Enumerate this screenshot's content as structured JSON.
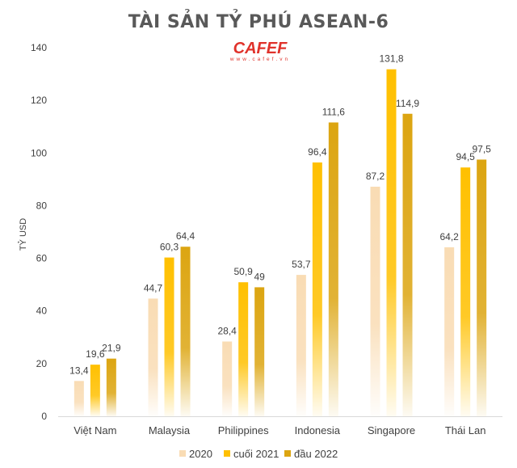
{
  "chart_data": {
    "type": "bar",
    "title": "TÀI SẢN TỶ PHÚ ASEAN-6",
    "xlabel": "",
    "ylabel": "TỶ USD",
    "ylim": [
      0,
      140
    ],
    "yticks": [
      0,
      20,
      40,
      60,
      80,
      100,
      120,
      140
    ],
    "grid": false,
    "legend": "bottom",
    "categories": [
      "Việt Nam",
      "Malaysia",
      "Philippines",
      "Indonesia",
      "Singapore",
      "Thái Lan"
    ],
    "series": [
      {
        "name": "2020",
        "color": "#f9dcb4",
        "values": [
          13.4,
          44.7,
          28.4,
          53.7,
          87.2,
          64.2
        ],
        "labels": [
          "13,4",
          "44,7",
          "28,4",
          "53,7",
          "87,2",
          "64,2"
        ]
      },
      {
        "name": "cuối 2021",
        "color": "#ffc000",
        "values": [
          19.6,
          60.3,
          50.9,
          96.4,
          131.8,
          94.5
        ],
        "labels": [
          "19,6",
          "60,3",
          "50,9",
          "96,4",
          "131,8",
          "94,5"
        ]
      },
      {
        "name": "đầu 2022",
        "color": "#dca511",
        "values": [
          21.9,
          64.4,
          49,
          111.6,
          114.9,
          97.5
        ],
        "labels": [
          "21,9",
          "64,4",
          "49",
          "111,6",
          "114,9",
          "97,5"
        ]
      }
    ]
  },
  "logo": {
    "text": "CAFEF",
    "sub": "www.cafef.vn"
  }
}
